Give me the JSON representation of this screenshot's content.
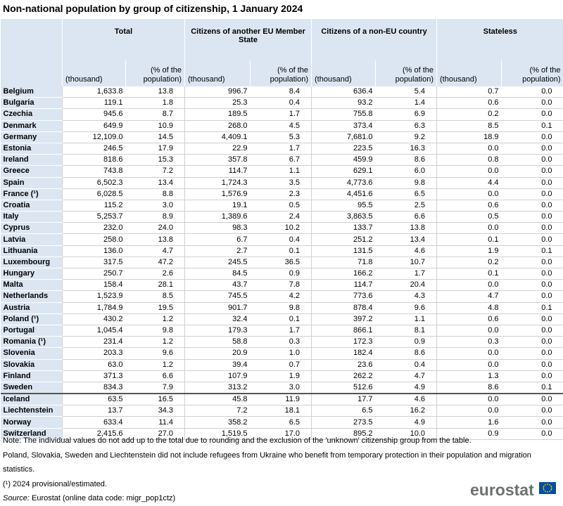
{
  "header": {
    "title": "Non-national population by group of citizenship, 1 January 2024"
  },
  "table": {
    "groups": [
      "Total",
      "Citizens of another EU Member State",
      "Citizens of a non-EU country",
      "Stateless"
    ],
    "units": [
      "(thousand)",
      "(% of the population)"
    ],
    "eu_rows": [
      [
        "Belgium",
        "1,633.8",
        "13.8",
        "996.7",
        "8.4",
        "636.4",
        "5.4",
        "0.7",
        "0.0"
      ],
      [
        "Bulgaria",
        "119.1",
        "1.8",
        "25.3",
        "0.4",
        "93.2",
        "1.4",
        "0.6",
        "0.0"
      ],
      [
        "Czechia",
        "945.6",
        "8.7",
        "189.5",
        "1.7",
        "755.8",
        "6.9",
        "0.2",
        "0.0"
      ],
      [
        "Denmark",
        "649.9",
        "10.9",
        "268.0",
        "4.5",
        "373.4",
        "6.3",
        "8.5",
        "0.1"
      ],
      [
        "Germany",
        "12,109.0",
        "14.5",
        "4,409.1",
        "5.3",
        "7,681.0",
        "9.2",
        "18.9",
        "0.0"
      ],
      [
        "Estonia",
        "246.5",
        "17.9",
        "22.9",
        "1.7",
        "223.5",
        "16.3",
        "0.0",
        "0.0"
      ],
      [
        "Ireland",
        "818.6",
        "15.3",
        "357.8",
        "6.7",
        "459.9",
        "8.6",
        "0.8",
        "0.0"
      ],
      [
        "Greece",
        "743.8",
        "7.2",
        "114.7",
        "1.1",
        "629.1",
        "6.0",
        "0.0",
        "0.0"
      ],
      [
        "Spain",
        "6,502.3",
        "13.4",
        "1,724.3",
        "3.5",
        "4,773.6",
        "9.8",
        "4.4",
        "0.0"
      ],
      [
        "France (¹)",
        "6,028.5",
        "8.8",
        "1,576.9",
        "2.3",
        "4,451.6",
        "6.5",
        "0.0",
        "0.0"
      ],
      [
        "Croatia",
        "115.2",
        "3.0",
        "19.1",
        "0.5",
        "95.5",
        "2.5",
        "0.6",
        "0.0"
      ],
      [
        "Italy",
        "5,253.7",
        "8.9",
        "1,389.6",
        "2.4",
        "3,863.5",
        "6.6",
        "0.5",
        "0.0"
      ],
      [
        "Cyprus",
        "232.0",
        "24.0",
        "98.3",
        "10.2",
        "133.7",
        "13.8",
        "0.0",
        "0.0"
      ],
      [
        "Latvia",
        "258.0",
        "13.8",
        "6.7",
        "0.4",
        "251.2",
        "13.4",
        "0.1",
        "0.0"
      ],
      [
        "Lithuania",
        "136.0",
        "4.7",
        "2.7",
        "0.1",
        "131.5",
        "4.6",
        "1.9",
        "0.1"
      ],
      [
        "Luxembourg",
        "317.5",
        "47.2",
        "245.5",
        "36.5",
        "71.8",
        "10.7",
        "0.2",
        "0.0"
      ],
      [
        "Hungary",
        "250.7",
        "2.6",
        "84.5",
        "0.9",
        "166.2",
        "1.7",
        "0.1",
        "0.0"
      ],
      [
        "Malta",
        "158.4",
        "28.1",
        "43.7",
        "7.8",
        "114.7",
        "20.4",
        "0.0",
        "0.0"
      ],
      [
        "Netherlands",
        "1,523.9",
        "8.5",
        "745.5",
        "4.2",
        "773.6",
        "4.3",
        "4.7",
        "0.0"
      ],
      [
        "Austria",
        "1,784.9",
        "19.5",
        "901.7",
        "9.8",
        "878.4",
        "9.6",
        "4.8",
        "0.1"
      ],
      [
        "Poland (¹)",
        "430.2",
        "1.2",
        "32.4",
        "0.1",
        "397.2",
        "1.1",
        "0.6",
        "0.0"
      ],
      [
        "Portugal",
        "1,045.4",
        "9.8",
        "179.3",
        "1.7",
        "866.1",
        "8.1",
        "0.0",
        "0.0"
      ],
      [
        "Romania (¹)",
        "231.4",
        "1.2",
        "58.8",
        "0.3",
        "172.3",
        "0.9",
        "0.3",
        "0.0"
      ],
      [
        "Slovenia",
        "203.3",
        "9.6",
        "20.9",
        "1.0",
        "182.4",
        "8.6",
        "0.0",
        "0.0"
      ],
      [
        "Slovakia",
        "63.0",
        "1.2",
        "39.4",
        "0.7",
        "23.6",
        "0.4",
        "0.0",
        "0.0"
      ],
      [
        "Finland",
        "371.3",
        "6.6",
        "107.9",
        "1.9",
        "262.2",
        "4.7",
        "1.3",
        "0.0"
      ],
      [
        "Sweden",
        "834.3",
        "7.9",
        "313.2",
        "3.0",
        "512.6",
        "4.9",
        "8.6",
        "0.1"
      ]
    ],
    "efta_rows": [
      [
        "Iceland",
        "63.5",
        "16.5",
        "45.8",
        "11.9",
        "17.7",
        "4.6",
        "0.0",
        "0.0"
      ],
      [
        "Liechtenstein",
        "13.7",
        "34.3",
        "7.2",
        "18.1",
        "6.5",
        "16.2",
        "0.0",
        "0.0"
      ],
      [
        "Norway",
        "633.4",
        "11.4",
        "358.2",
        "6.5",
        "273.5",
        "4.9",
        "1.6",
        "0.0"
      ],
      [
        "Switzerland",
        "2,415.6",
        "27.0",
        "1,519.5",
        "17.0",
        "895.2",
        "10.0",
        "0.9",
        "0.0"
      ]
    ]
  },
  "notes": [
    "Note: The individual values do not add up to the total due to rounding and the exclusion of the 'unknown' citizenship group from the table.",
    "Poland, Slovakia, Sweden and Liechtenstein did not include refugees from Ukraine who benefit from temporary protection in their population and migration statistics.",
    "(¹) 2024 provisional/estimated."
  ],
  "source": {
    "label": "Source:",
    "text": "Eurostat (online data code: migr_pop1ctz)"
  },
  "logo": "eurostat"
}
